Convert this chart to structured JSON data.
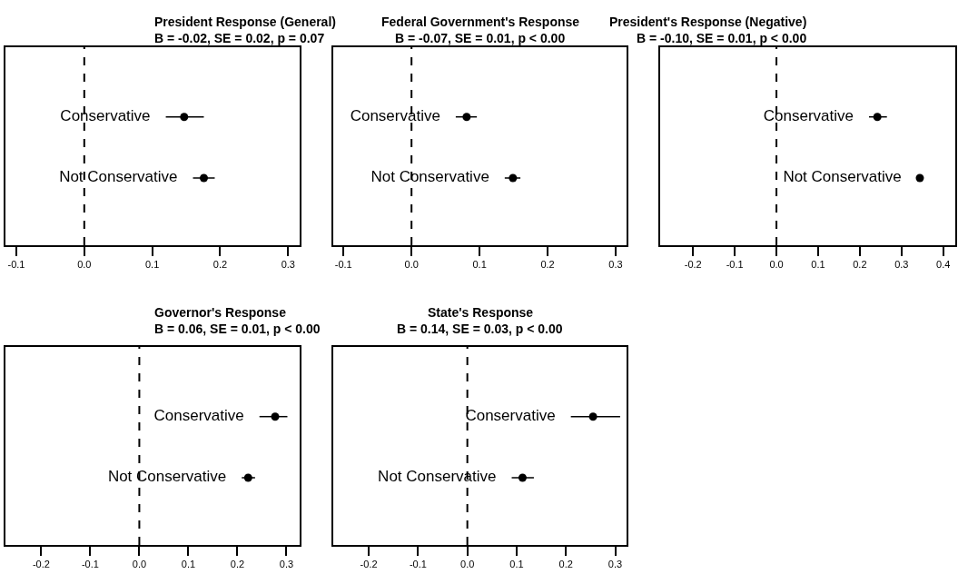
{
  "chart_data": [
    {
      "type": "scatter",
      "orientation": "horizontal",
      "title": "President Response (General)",
      "subtitle": "B = -0.02, SE = 0.02, p = 0.07",
      "categories": [
        "Conservative",
        "Not Conservative"
      ],
      "values": [
        0.147,
        0.176
      ],
      "errors": [
        [
          0.12,
          0.176
        ],
        [
          0.16,
          0.192
        ]
      ],
      "color": "#000000",
      "marker": "circle",
      "xlim": [
        -0.116,
        0.317
      ],
      "xticks": [
        {
          "value": -0.1,
          "label": "-0.1"
        },
        {
          "value": 0,
          "label": "0.0"
        },
        {
          "value": 0.1,
          "label": "0.1"
        },
        {
          "value": 0.2,
          "label": "0.2"
        },
        {
          "value": 0.3,
          "label": "0.3"
        }
      ],
      "ref_lines": [
        {
          "axis": "x",
          "value": 0,
          "line_style": "dashed",
          "color": "#000000"
        }
      ],
      "tick_labels": "x"
    },
    {
      "type": "scatter",
      "orientation": "horizontal",
      "title": "Federal Government's Response",
      "subtitle": "B = -0.07, SE = 0.01, p < 0.00",
      "categories": [
        "Conservative",
        "Not Conservative"
      ],
      "values": [
        0.081,
        0.149
      ],
      "errors": [
        [
          0.065,
          0.096
        ],
        [
          0.137,
          0.16
        ]
      ],
      "color": "#000000",
      "marker": "circle",
      "xlim": [
        -0.115,
        0.316
      ],
      "xticks": [
        {
          "value": -0.1,
          "label": "-0.1"
        },
        {
          "value": 0,
          "label": "0.0"
        },
        {
          "value": 0.1,
          "label": "0.1"
        },
        {
          "value": 0.2,
          "label": "0.2"
        },
        {
          "value": 0.3,
          "label": "0.3"
        }
      ],
      "ref_lines": [
        {
          "axis": "x",
          "value": 0,
          "line_style": "dashed",
          "color": "#000000"
        }
      ],
      "tick_labels": "x"
    },
    {
      "type": "scatter",
      "orientation": "horizontal",
      "title": "President's Response (Negative)",
      "subtitle": "B = -0.10, SE = 0.01, p < 0.00",
      "categories": [
        "Conservative",
        "Not Conservative"
      ],
      "values": [
        0.242,
        0.344
      ],
      "errors": [
        [
          0.222,
          0.265
        ],
        [
          0.337,
          0.351
        ]
      ],
      "color": "#000000",
      "marker": "circle",
      "xlim": [
        -0.279,
        0.429
      ],
      "xticks": [
        {
          "value": -0.2,
          "label": "-0.2"
        },
        {
          "value": -0.1,
          "label": "-0.1"
        },
        {
          "value": 0,
          "label": "0.0"
        },
        {
          "value": 0.1,
          "label": "0.1"
        },
        {
          "value": 0.2,
          "label": "0.2"
        },
        {
          "value": 0.3,
          "label": "0.3"
        },
        {
          "value": 0.4,
          "label": "0.4"
        }
      ],
      "ref_lines": [
        {
          "axis": "x",
          "value": 0,
          "line_style": "dashed",
          "color": "#000000"
        }
      ],
      "tick_labels": "x"
    },
    {
      "type": "scatter",
      "orientation": "horizontal",
      "title": "Governor's Response",
      "subtitle": "B = 0.06, SE = 0.01, p < 0.00",
      "categories": [
        "Conservative",
        "Not Conservative"
      ],
      "values": [
        0.277,
        0.222
      ],
      "errors": [
        [
          0.245,
          0.302
        ],
        [
          0.209,
          0.236
        ]
      ],
      "color": "#000000",
      "marker": "circle",
      "xlim": [
        -0.273,
        0.327
      ],
      "xticks": [
        {
          "value": -0.2,
          "label": "-0.2"
        },
        {
          "value": -0.1,
          "label": "-0.1"
        },
        {
          "value": 0,
          "label": "0.0"
        },
        {
          "value": 0.1,
          "label": "0.1"
        },
        {
          "value": 0.2,
          "label": "0.2"
        },
        {
          "value": 0.3,
          "label": "0.3"
        }
      ],
      "ref_lines": [
        {
          "axis": "x",
          "value": 0,
          "line_style": "dashed",
          "color": "#000000"
        }
      ],
      "tick_labels": "x"
    },
    {
      "type": "scatter",
      "orientation": "horizontal",
      "title": "State's Response",
      "subtitle": "B = 0.14, SE = 0.03, p < 0.00",
      "categories": [
        "Conservative",
        "Not Conservative"
      ],
      "values": [
        0.255,
        0.112
      ],
      "errors": [
        [
          0.21,
          0.31
        ],
        [
          0.09,
          0.135
        ]
      ],
      "color": "#000000",
      "marker": "circle",
      "xlim": [
        -0.272,
        0.323
      ],
      "xticks": [
        {
          "value": -0.2,
          "label": "-0.2"
        },
        {
          "value": -0.1,
          "label": "-0.1"
        },
        {
          "value": 0,
          "label": "0.0"
        },
        {
          "value": 0.1,
          "label": "0.1"
        },
        {
          "value": 0.2,
          "label": "0.2"
        },
        {
          "value": 0.3,
          "label": "0.3"
        }
      ],
      "ref_lines": [
        {
          "axis": "x",
          "value": 0,
          "line_style": "dashed",
          "color": "#000000"
        }
      ],
      "tick_labels": "x"
    }
  ]
}
